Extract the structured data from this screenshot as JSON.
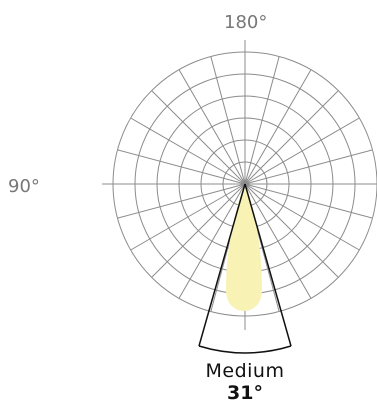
{
  "polar_chart": {
    "label_top": "180°",
    "label_left": "90°",
    "grid_color": "#8c8c8c",
    "beam_fill": "#f8f2b4",
    "beam_line_color": "#111111"
  },
  "beam": {
    "name": "Medium",
    "angle": "31°",
    "angle_value": 31
  }
}
